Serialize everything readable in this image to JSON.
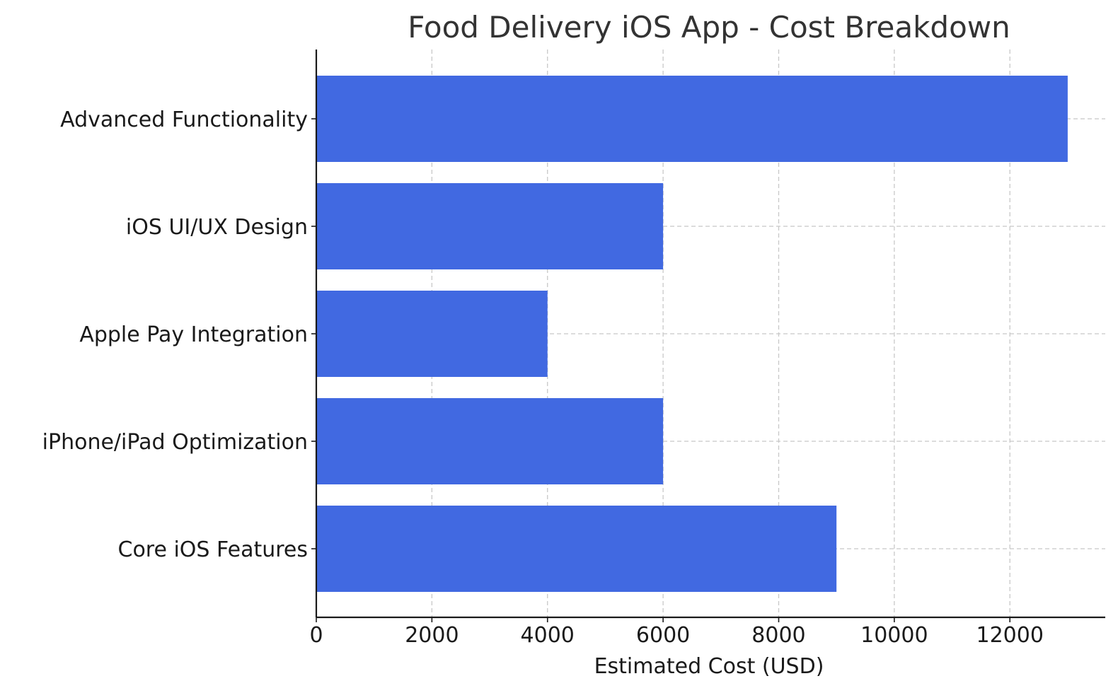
{
  "chart_data": {
    "type": "bar",
    "orientation": "horizontal",
    "title": "Food Delivery iOS App - Cost Breakdown",
    "xlabel": "Estimated Cost (USD)",
    "ylabel": "",
    "categories": [
      "Core iOS Features",
      "iPhone/iPad Optimization",
      "Apple Pay Integration",
      "iOS UI/UX Design",
      "Advanced Functionality"
    ],
    "values": [
      9000,
      6000,
      4000,
      6000,
      13000
    ],
    "xlim": [
      0,
      13650
    ],
    "xticks": [
      0,
      2000,
      4000,
      6000,
      8000,
      10000,
      12000
    ],
    "grid": true,
    "bar_color": "#4169E1",
    "axis_color": "#1a1a1a",
    "grid_color": "#c8c8c8",
    "title_color": "#333333"
  }
}
